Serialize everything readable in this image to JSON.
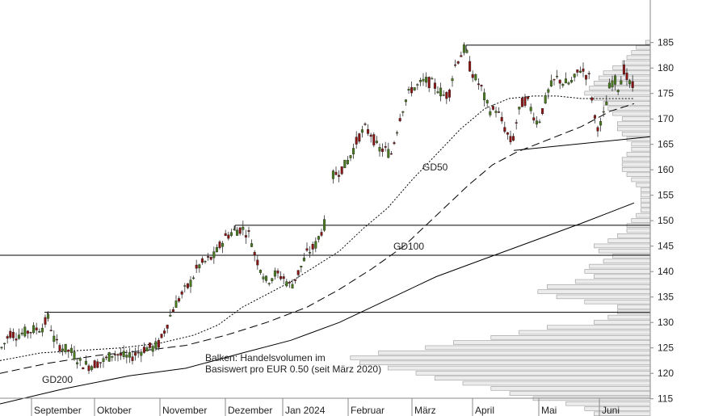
{
  "chart_data": {
    "type": "candlestick",
    "y_range": [
      110,
      187
    ],
    "y_ticks": [
      115,
      120,
      125,
      130,
      135,
      140,
      145,
      150,
      155,
      160,
      165,
      170,
      175,
      180,
      185
    ],
    "x_tick_labels": [
      "September",
      "Oktober",
      "November",
      "Dezember",
      "Jan 2024",
      "Februar",
      "März",
      "April",
      "Mai",
      "Juni"
    ],
    "grid": false,
    "annotation_lines": [
      "Balken: Handelsvolumen im",
      "Basiswert pro EUR 0.50 (seit März 2020)"
    ],
    "series": [
      {
        "name": "GD50",
        "style": "dotted"
      },
      {
        "name": "GD100",
        "style": "dashed"
      },
      {
        "name": "GD200",
        "style": "solid"
      }
    ],
    "horizontal_levels": [
      132,
      143.2,
      149.1,
      184.5
    ],
    "trendline": {
      "from": [
        163.8,
        "April"
      ],
      "to": [
        166.5,
        "Juni"
      ]
    },
    "price_path": [
      [
        0,
        124.5
      ],
      [
        6,
        126
      ],
      [
        12,
        128
      ],
      [
        20,
        127.5
      ],
      [
        30,
        128
      ],
      [
        40,
        128.5
      ],
      [
        52,
        129
      ],
      [
        60,
        131
      ],
      [
        68,
        126
      ],
      [
        78,
        125
      ],
      [
        90,
        124
      ],
      [
        100,
        122
      ],
      [
        110,
        121.5
      ],
      [
        120,
        122
      ],
      [
        130,
        122.5
      ],
      [
        140,
        124
      ],
      [
        150,
        123.5
      ],
      [
        160,
        123
      ],
      [
        170,
        124
      ],
      [
        180,
        125
      ],
      [
        190,
        125
      ],
      [
        198,
        126
      ],
      [
        205,
        129
      ],
      [
        215,
        133
      ],
      [
        225,
        135.5
      ],
      [
        235,
        137.5
      ],
      [
        245,
        141
      ],
      [
        255,
        142
      ],
      [
        265,
        143
      ],
      [
        272,
        145
      ],
      [
        280,
        147
      ],
      [
        290,
        148
      ],
      [
        300,
        148.5
      ],
      [
        310,
        147
      ],
      [
        316,
        143
      ],
      [
        322,
        141
      ],
      [
        330,
        138
      ],
      [
        340,
        139.5
      ],
      [
        350,
        139
      ],
      [
        360,
        137
      ],
      [
        370,
        140
      ],
      [
        380,
        143.5
      ],
      [
        390,
        145
      ],
      [
        398,
        148
      ],
      [
        404,
        150
      ],
      [
        410,
        158.5
      ],
      [
        418,
        159.5
      ],
      [
        428,
        161
      ],
      [
        436,
        163.5
      ],
      [
        444,
        166.5
      ],
      [
        452,
        168
      ],
      [
        460,
        167
      ],
      [
        468,
        164
      ],
      [
        476,
        164
      ],
      [
        484,
        163
      ],
      [
        490,
        167
      ],
      [
        496,
        171
      ],
      [
        503,
        174
      ],
      [
        510,
        176
      ],
      [
        518,
        176.5
      ],
      [
        526,
        177.5
      ],
      [
        534,
        177
      ],
      [
        542,
        176
      ],
      [
        550,
        174.5
      ],
      [
        556,
        175
      ],
      [
        562,
        180
      ],
      [
        568,
        182
      ],
      [
        576,
        184
      ],
      [
        582,
        180
      ],
      [
        588,
        178
      ],
      [
        596,
        176
      ],
      [
        602,
        173
      ],
      [
        608,
        171.5
      ],
      [
        614,
        172
      ],
      [
        620,
        170
      ],
      [
        628,
        167
      ],
      [
        634,
        165
      ],
      [
        640,
        170
      ],
      [
        646,
        173
      ],
      [
        652,
        174
      ],
      [
        660,
        171
      ],
      [
        666,
        169
      ],
      [
        672,
        172
      ],
      [
        678,
        175
      ],
      [
        684,
        177
      ],
      [
        690,
        178
      ],
      [
        698,
        177
      ],
      [
        706,
        177
      ],
      [
        712,
        178
      ],
      [
        718,
        180
      ],
      [
        724,
        179
      ],
      [
        730,
        178
      ],
      [
        736,
        170
      ],
      [
        742,
        168
      ],
      [
        748,
        171
      ],
      [
        754,
        176
      ],
      [
        760,
        178
      ],
      [
        766,
        176
      ],
      [
        772,
        180
      ],
      [
        778,
        177
      ],
      [
        785,
        176
      ]
    ],
    "moving_averages": {
      "GD50": [
        [
          0,
          122.5
        ],
        [
          50,
          124
        ],
        [
          100,
          124.5
        ],
        [
          150,
          125
        ],
        [
          200,
          126
        ],
        [
          240,
          127.5
        ],
        [
          270,
          129.5
        ],
        [
          300,
          133
        ],
        [
          330,
          135.5
        ],
        [
          360,
          138
        ],
        [
          390,
          141
        ],
        [
          420,
          144
        ],
        [
          450,
          148.5
        ],
        [
          480,
          152.5
        ],
        [
          510,
          158
        ],
        [
          540,
          163
        ],
        [
          570,
          168
        ],
        [
          600,
          172
        ],
        [
          630,
          174
        ],
        [
          660,
          174.5
        ],
        [
          690,
          174.5
        ],
        [
          720,
          174
        ],
        [
          750,
          174
        ],
        [
          785,
          174
        ]
      ],
      "GD100": [
        [
          0,
          120
        ],
        [
          60,
          122
        ],
        [
          120,
          123.5
        ],
        [
          180,
          124.5
        ],
        [
          230,
          125.5
        ],
        [
          280,
          127.5
        ],
        [
          330,
          130
        ],
        [
          380,
          133
        ],
        [
          420,
          136.5
        ],
        [
          460,
          140.5
        ],
        [
          500,
          145
        ],
        [
          540,
          151
        ],
        [
          580,
          157
        ],
        [
          610,
          161
        ],
        [
          640,
          163.5
        ],
        [
          680,
          166
        ],
        [
          720,
          168.5
        ],
        [
          755,
          171.5
        ],
        [
          785,
          173
        ]
      ],
      "GD200": [
        [
          0,
          114
        ],
        [
          80,
          117
        ],
        [
          160,
          119.5
        ],
        [
          230,
          121
        ],
        [
          300,
          124
        ],
        [
          360,
          126.5
        ],
        [
          420,
          130
        ],
        [
          460,
          133
        ],
        [
          500,
          136
        ],
        [
          540,
          139
        ],
        [
          600,
          142.5
        ],
        [
          660,
          146
        ],
        [
          720,
          149.5
        ],
        [
          785,
          153.5
        ]
      ]
    },
    "volume_profile": [
      [
        111,
        0.1
      ],
      [
        112,
        0.12
      ],
      [
        113,
        0.14
      ],
      [
        114,
        0.18
      ],
      [
        115,
        0.25
      ],
      [
        116,
        0.3
      ],
      [
        117,
        0.34
      ],
      [
        118,
        0.4
      ],
      [
        119,
        0.46
      ],
      [
        120,
        0.5
      ],
      [
        121,
        0.56
      ],
      [
        122,
        0.62
      ],
      [
        123,
        0.64
      ],
      [
        124,
        0.58
      ],
      [
        125,
        0.48
      ],
      [
        126,
        0.42
      ],
      [
        127,
        0.34
      ],
      [
        128,
        0.28
      ],
      [
        129,
        0.22
      ],
      [
        130,
        0.12
      ],
      [
        131,
        0.09
      ],
      [
        132,
        0.07
      ],
      [
        133,
        0.07
      ],
      [
        134,
        0.14
      ],
      [
        135,
        0.2
      ],
      [
        136,
        0.24
      ],
      [
        137,
        0.22
      ],
      [
        138,
        0.16
      ],
      [
        139,
        0.12
      ],
      [
        140,
        0.14
      ],
      [
        141,
        0.13
      ],
      [
        142,
        0.1
      ],
      [
        143,
        0.08
      ],
      [
        144,
        0.11
      ],
      [
        145,
        0.12
      ],
      [
        146,
        0.09
      ],
      [
        147,
        0.07
      ],
      [
        148,
        0.05
      ],
      [
        149,
        0.05
      ],
      [
        150,
        0.04
      ],
      [
        151,
        0.03
      ],
      [
        152,
        0.02
      ],
      [
        153,
        0.02
      ],
      [
        154,
        0.02
      ],
      [
        155,
        0.02
      ],
      [
        156,
        0.02
      ],
      [
        157,
        0.03
      ],
      [
        158,
        0.04
      ],
      [
        159,
        0.05
      ],
      [
        160,
        0.06
      ],
      [
        161,
        0.06
      ],
      [
        162,
        0.06
      ],
      [
        163,
        0.05
      ],
      [
        164,
        0.04
      ],
      [
        165,
        0.04
      ],
      [
        166,
        0.05
      ],
      [
        167,
        0.06
      ],
      [
        168,
        0.07
      ],
      [
        169,
        0.07
      ],
      [
        170,
        0.06
      ],
      [
        171,
        0.08
      ],
      [
        172,
        0.09
      ],
      [
        173,
        0.1
      ],
      [
        174,
        0.12
      ],
      [
        175,
        0.14
      ],
      [
        176,
        0.13
      ],
      [
        177,
        0.12
      ],
      [
        178,
        0.11
      ],
      [
        179,
        0.1
      ],
      [
        180,
        0.08
      ],
      [
        181,
        0.06
      ],
      [
        182,
        0.05
      ],
      [
        183,
        0.04
      ],
      [
        184,
        0.03
      ],
      [
        185,
        0.01
      ]
    ]
  }
}
